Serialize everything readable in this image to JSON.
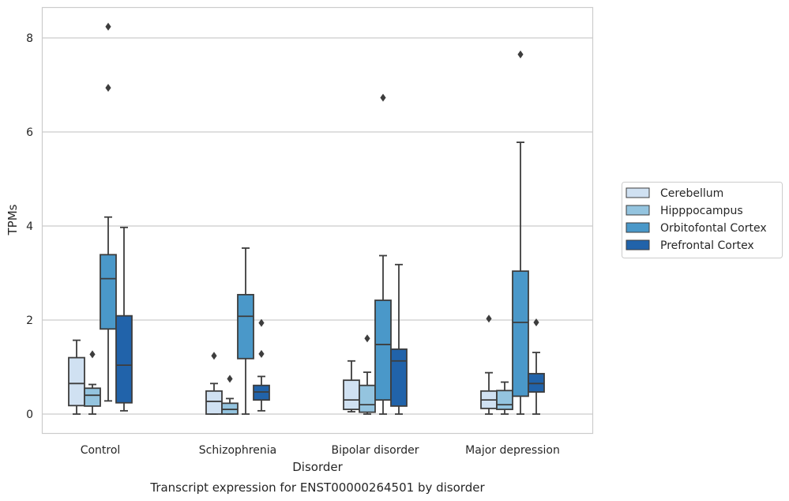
{
  "chart_data": {
    "type": "box",
    "title": "Transcript expression for ENST00000264501 by disorder",
    "xlabel": "Disorder",
    "ylabel": "TPMs",
    "ylim": [
      -0.4,
      8.65
    ],
    "yticks": [
      0,
      2,
      4,
      6,
      8
    ],
    "grid": "horizontal",
    "legend_position": "right",
    "categories": [
      "Control",
      "Schizophrenia",
      "Bipolar disorder",
      "Major depression"
    ],
    "series": [
      {
        "name": "Cerebellum",
        "color": "#d0e1f2",
        "boxes": [
          {
            "whislo": 0.0,
            "q1": 0.18,
            "med": 0.65,
            "q3": 1.2,
            "whishi": 1.57,
            "fliers": []
          },
          {
            "whislo": 0.0,
            "q1": 0.0,
            "med": 0.27,
            "q3": 0.49,
            "whishi": 0.65,
            "fliers": [
              1.24
            ]
          },
          {
            "whislo": 0.05,
            "q1": 0.1,
            "med": 0.3,
            "q3": 0.72,
            "whishi": 1.13,
            "fliers": []
          },
          {
            "whislo": 0.0,
            "q1": 0.12,
            "med": 0.3,
            "q3": 0.49,
            "whishi": 0.88,
            "fliers": [
              2.03
            ]
          }
        ]
      },
      {
        "name": "Hipppocampus",
        "color": "#94c4df",
        "boxes": [
          {
            "whislo": 0.0,
            "q1": 0.17,
            "med": 0.4,
            "q3": 0.55,
            "whishi": 0.63,
            "fliers": [
              1.27
            ]
          },
          {
            "whislo": 0.0,
            "q1": 0.0,
            "med": 0.1,
            "q3": 0.23,
            "whishi": 0.33,
            "fliers": [
              0.75
            ]
          },
          {
            "whislo": 0.0,
            "q1": 0.04,
            "med": 0.2,
            "q3": 0.61,
            "whishi": 0.89,
            "fliers": [
              1.61
            ]
          },
          {
            "whislo": 0.0,
            "q1": 0.1,
            "med": 0.2,
            "q3": 0.5,
            "whishi": 0.68,
            "fliers": []
          }
        ]
      },
      {
        "name": "Orbitofontal Cortex",
        "color": "#4a98c9",
        "boxes": [
          {
            "whislo": 0.28,
            "q1": 1.81,
            "med": 2.88,
            "q3": 3.39,
            "whishi": 4.19,
            "fliers": [
              8.24,
              6.94
            ]
          },
          {
            "whislo": 0.0,
            "q1": 1.18,
            "med": 2.08,
            "q3": 2.54,
            "whishi": 3.53,
            "fliers": []
          },
          {
            "whislo": 0.0,
            "q1": 0.3,
            "med": 1.48,
            "q3": 2.42,
            "whishi": 3.37,
            "fliers": [
              6.73
            ]
          },
          {
            "whislo": 0.0,
            "q1": 0.38,
            "med": 1.95,
            "q3": 3.04,
            "whishi": 5.78,
            "fliers": [
              7.65
            ]
          }
        ]
      },
      {
        "name": "Prefrontal Cortex",
        "color": "#2163aa",
        "boxes": [
          {
            "whislo": 0.07,
            "q1": 0.24,
            "med": 1.04,
            "q3": 2.09,
            "whishi": 3.97,
            "fliers": []
          },
          {
            "whislo": 0.07,
            "q1": 0.3,
            "med": 0.47,
            "q3": 0.61,
            "whishi": 0.8,
            "fliers": [
              1.94,
              1.28
            ]
          },
          {
            "whislo": 0.0,
            "q1": 0.17,
            "med": 1.13,
            "q3": 1.38,
            "whishi": 3.18,
            "fliers": []
          },
          {
            "whislo": 0.0,
            "q1": 0.47,
            "med": 0.65,
            "q3": 0.86,
            "whishi": 1.31,
            "fliers": [
              1.95
            ]
          }
        ]
      }
    ]
  }
}
